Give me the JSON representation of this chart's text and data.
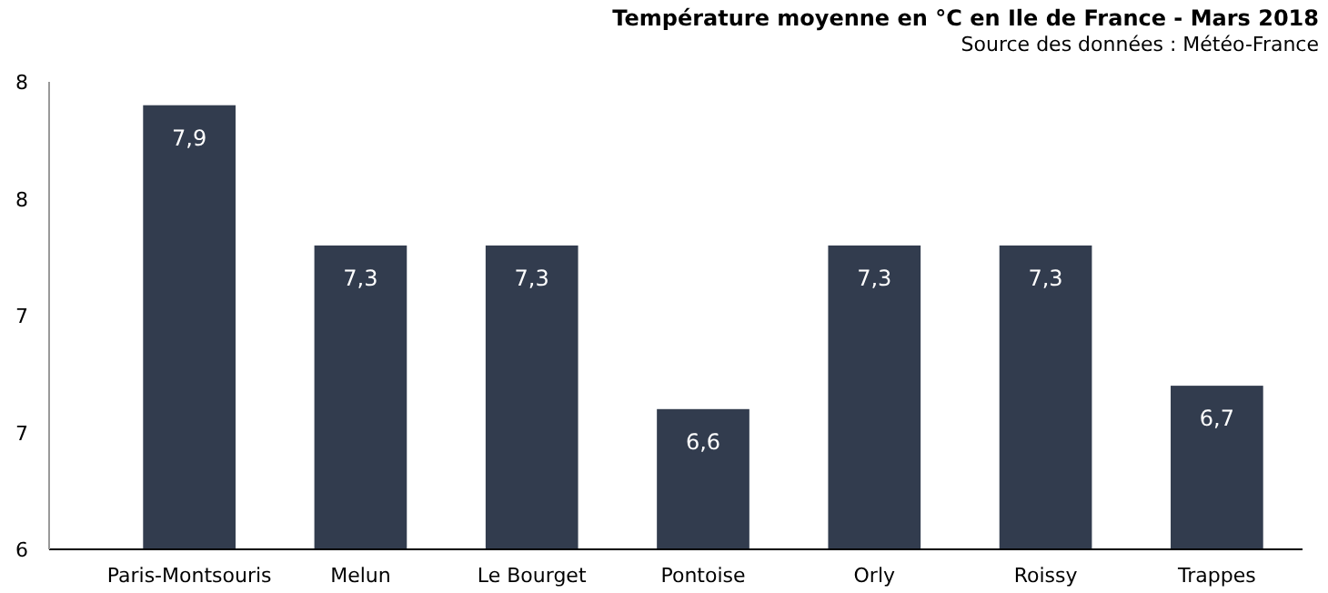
{
  "chart_data": {
    "type": "bar",
    "title": "Température moyenne en °C en Ile de France - Mars 2018",
    "subtitle": "Source des données : Météo-France",
    "categories": [
      "Paris-Montsouris",
      "Melun",
      "Le Bourget",
      "Pontoise",
      "Orly",
      "Roissy",
      "Trappes"
    ],
    "values": [
      7.9,
      7.3,
      7.3,
      6.6,
      7.3,
      7.3,
      6.7
    ],
    "value_labels": [
      "7,9",
      "7,3",
      "7,3",
      "6,6",
      "7,3",
      "7,3",
      "6,7"
    ],
    "color": "#323c4e",
    "ylim": [
      6,
      8
    ],
    "yticks": [
      {
        "value": 6,
        "label": "6"
      },
      {
        "value": 6.5,
        "label": "7"
      },
      {
        "value": 7,
        "label": "7"
      },
      {
        "value": 7.5,
        "label": "8"
      },
      {
        "value": 8,
        "label": "8"
      }
    ],
    "grid": false
  }
}
